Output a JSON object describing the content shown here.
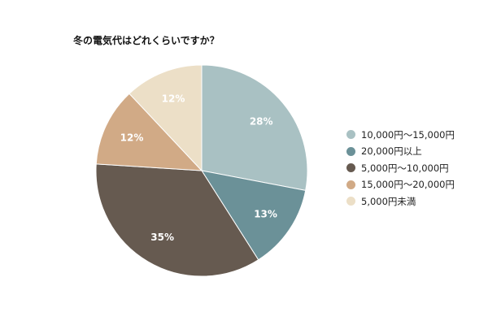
{
  "chart_data": {
    "type": "pie",
    "title": "冬の電気代はどれくらいですか？",
    "slices": [
      {
        "label": "10,000円～15,000円",
        "value": 28,
        "color": "#a9c1c3",
        "display": "28%"
      },
      {
        "label": "20,000円以上",
        "value": 13,
        "color": "#6b9198",
        "display": "13%"
      },
      {
        "label": "5,000円～10,000円",
        "value": 35,
        "color": "#665a50",
        "display": "35%"
      },
      {
        "label": "15,000円～20,000円",
        "value": 12,
        "color": "#d1aa86",
        "display": "12%"
      },
      {
        "label": "5,000円未満",
        "value": 12,
        "color": "#ecdfc7",
        "display": "12%"
      }
    ],
    "legend_position": "right"
  }
}
